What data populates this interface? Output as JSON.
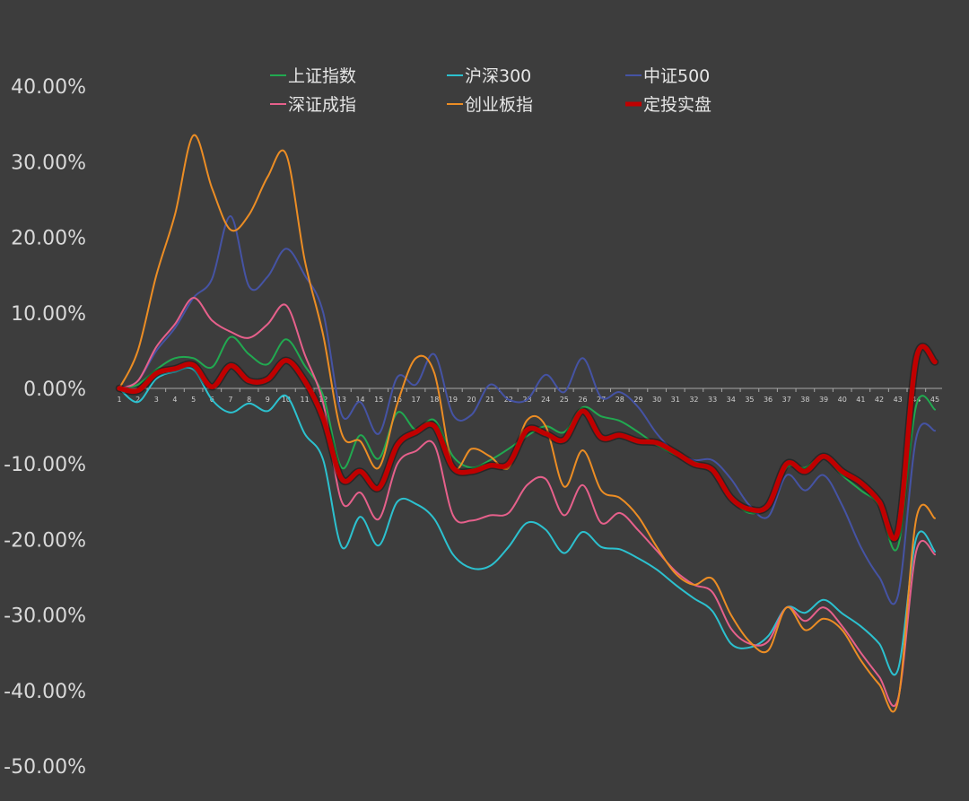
{
  "chart_data": {
    "type": "line",
    "title": "",
    "xlabel": "",
    "ylabel": "",
    "ylim": [
      -50,
      40
    ],
    "yticks": [
      40,
      30,
      20,
      10,
      0,
      -10,
      -20,
      -30,
      -40,
      -50
    ],
    "ytick_labels": [
      "40.00%",
      "30.00%",
      "20.00%",
      "10.00%",
      "0.00%",
      "-10.00%",
      "-20.00%",
      "-30.00%",
      "-40.00%",
      "-50.00%"
    ],
    "x": [
      1,
      2,
      3,
      4,
      5,
      6,
      7,
      8,
      9,
      10,
      11,
      12,
      13,
      14,
      15,
      16,
      17,
      18,
      19,
      20,
      21,
      22,
      23,
      24,
      25,
      26,
      27,
      28,
      29,
      30,
      31,
      32,
      33,
      34,
      35,
      36,
      37,
      38,
      39,
      40,
      41,
      42,
      43,
      44,
      45
    ],
    "x_labels": [
      "1",
      "2",
      "3",
      "4",
      "5",
      "6",
      "7",
      "8",
      "9",
      "10",
      "11",
      "12",
      "13",
      "14",
      "15",
      "16",
      "17",
      "18",
      "19",
      "20",
      "21",
      "22",
      "23",
      "24",
      "25",
      "26",
      "27",
      "28",
      "29",
      "30",
      "31",
      "32",
      "33",
      "34",
      "35",
      "36",
      "37",
      "38",
      "39",
      "40",
      "41",
      "42",
      "43",
      "44",
      "45"
    ],
    "grid": false,
    "legend_position": "top",
    "series": [
      {
        "name": "上证指数",
        "color": "#21a950",
        "width": 2,
        "values": [
          0,
          0.5,
          2.5,
          4,
          4,
          2.8,
          6.8,
          4.5,
          3.2,
          6.5,
          3,
          -1,
          -10.5,
          -6.2,
          -9.3,
          -3.2,
          -5.5,
          -4.2,
          -9,
          -10.5,
          -9.5,
          -8,
          -6.3,
          -5,
          -5.8,
          -2.5,
          -3.7,
          -4.3,
          -5.8,
          -7.5,
          -8.8,
          -9.7,
          -11,
          -14.5,
          -16.5,
          -15.5,
          -10.5,
          -10.5,
          -9,
          -11.5,
          -13.5,
          -15.5,
          -21,
          -2.2,
          -2.8
        ]
      },
      {
        "name": "沪深300",
        "color": "#2cc1cf",
        "width": 2,
        "values": [
          0,
          -1.8,
          1.3,
          2.2,
          2.5,
          -1.5,
          -3.2,
          -2,
          -3,
          -1,
          -6,
          -9.5,
          -21,
          -17,
          -20.8,
          -15,
          -15.3,
          -17.3,
          -22,
          -23.8,
          -23.5,
          -21,
          -17.8,
          -18.7,
          -21.8,
          -19,
          -21,
          -21.3,
          -22.5,
          -24,
          -26,
          -27.8,
          -29.5,
          -33.8,
          -34.3,
          -32.8,
          -29,
          -29.7,
          -28,
          -29.8,
          -31.5,
          -33.8,
          -37.3,
          -19.8,
          -21.6
        ]
      },
      {
        "name": "中证500",
        "color": "#4553a4",
        "width": 2,
        "values": [
          0,
          1,
          5,
          8,
          12,
          14.5,
          22.8,
          13.5,
          14.8,
          18.5,
          15,
          10,
          -3.5,
          -1.8,
          -6,
          1.5,
          0.5,
          4.5,
          -3.5,
          -3.5,
          0.5,
          -1.5,
          -1.5,
          1.8,
          -0.5,
          4,
          -1.2,
          -0.5,
          -2.5,
          -6,
          -8.5,
          -9.5,
          -9.5,
          -12,
          -15.5,
          -17,
          -11.5,
          -13.5,
          -11.5,
          -15.5,
          -21,
          -25,
          -27.5,
          -6.5,
          -5.6
        ]
      },
      {
        "name": "深证成指",
        "color": "#e6608b",
        "width": 2,
        "values": [
          0,
          1,
          5.5,
          8.5,
          12,
          9,
          7.5,
          6.7,
          8.5,
          11,
          4.5,
          -2,
          -15,
          -13.8,
          -17.3,
          -10,
          -8.3,
          -7.5,
          -16.8,
          -17.5,
          -16.8,
          -16.5,
          -12.8,
          -12,
          -16.8,
          -12.8,
          -17.8,
          -16.5,
          -18.8,
          -21.5,
          -24.2,
          -26,
          -27,
          -31.8,
          -33.8,
          -33.5,
          -29,
          -30.8,
          -29,
          -31.5,
          -35,
          -38.2,
          -41.2,
          -21.5,
          -22
        ]
      },
      {
        "name": "创业板指",
        "color": "#ec8d24",
        "width": 2,
        "values": [
          0,
          5,
          15,
          23,
          33.5,
          26.5,
          21,
          23,
          28,
          31,
          17,
          7,
          -6,
          -7,
          -10.5,
          -2,
          4,
          2,
          -10.3,
          -8,
          -9,
          -10.5,
          -4.2,
          -5,
          -13,
          -8.2,
          -13.5,
          -14.5,
          -17,
          -21,
          -24.5,
          -26,
          -25.2,
          -30,
          -33.5,
          -34.7,
          -29,
          -32,
          -30.5,
          -32,
          -36,
          -39.2,
          -41.5,
          -17.2,
          -17.2
        ]
      },
      {
        "name": "定投实盘",
        "color": "#c00000",
        "width": 5.5,
        "values": [
          0,
          -0.3,
          2,
          2.6,
          3.1,
          0.2,
          3,
          1,
          1.2,
          3.7,
          1,
          -4,
          -12,
          -11,
          -13.2,
          -7.5,
          -5.8,
          -5,
          -10.5,
          -11,
          -10.2,
          -10,
          -5.5,
          -6,
          -6.8,
          -3,
          -6.5,
          -6.2,
          -7,
          -7.2,
          -8.5,
          -10,
          -10.8,
          -14.5,
          -16,
          -15.5,
          -10,
          -11,
          -9,
          -11,
          -12.5,
          -15,
          -19,
          4,
          3.5
        ]
      }
    ]
  }
}
